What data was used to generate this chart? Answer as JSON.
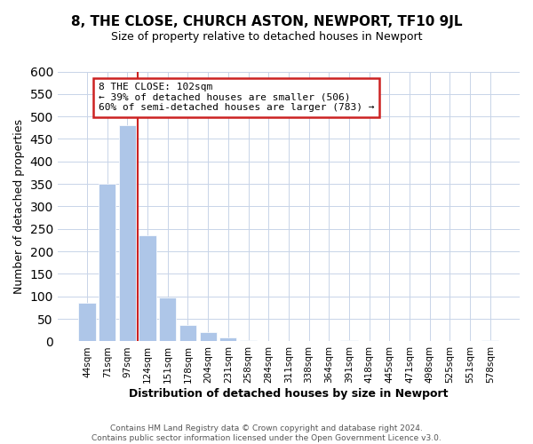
{
  "title": "8, THE CLOSE, CHURCH ASTON, NEWPORT, TF10 9JL",
  "subtitle": "Size of property relative to detached houses in Newport",
  "xlabel": "Distribution of detached houses by size in Newport",
  "ylabel": "Number of detached properties",
  "footer_line1": "Contains HM Land Registry data © Crown copyright and database right 2024.",
  "footer_line2": "Contains public sector information licensed under the Open Government Licence v3.0.",
  "bar_labels": [
    "44sqm",
    "71sqm",
    "97sqm",
    "124sqm",
    "151sqm",
    "178sqm",
    "204sqm",
    "231sqm",
    "258sqm",
    "284sqm",
    "311sqm",
    "338sqm",
    "364sqm",
    "391sqm",
    "418sqm",
    "445sqm",
    "471sqm",
    "498sqm",
    "525sqm",
    "551sqm",
    "578sqm"
  ],
  "bar_values": [
    85,
    350,
    480,
    235,
    97,
    37,
    20,
    8,
    2,
    0,
    0,
    0,
    0,
    2,
    0,
    0,
    0,
    0,
    0,
    0,
    2
  ],
  "bar_color": "#aec6e8",
  "vline_color": "#cc2222",
  "annotation_line1": "8 THE CLOSE: 102sqm",
  "annotation_line2": "← 39% of detached houses are smaller (506)",
  "annotation_line3": "60% of semi-detached houses are larger (783) →",
  "annotation_box_facecolor": "#ffffff",
  "annotation_box_edgecolor": "#cc2222",
  "ylim": [
    0,
    600
  ],
  "yticks": [
    0,
    50,
    100,
    150,
    200,
    250,
    300,
    350,
    400,
    450,
    500,
    550,
    600
  ],
  "title_fontsize": 11,
  "subtitle_fontsize": 9,
  "xlabel_fontsize": 9,
  "ylabel_fontsize": 9,
  "tick_fontsize": 7.5,
  "footer_fontsize": 6.5,
  "grid_color": "#c8d4e8",
  "bar_edgecolor": "#ffffff"
}
